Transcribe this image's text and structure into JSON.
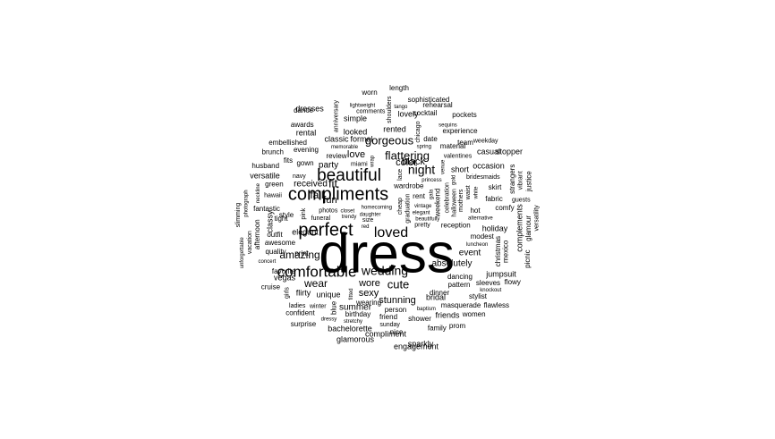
{
  "words": [
    "dress",
    "perfect",
    "beautiful",
    "compliments",
    "comfortable",
    "wedding",
    "loved",
    "night",
    "flattering",
    "color",
    "gorgeous",
    "fit",
    "fall",
    "fun",
    "amazing",
    "party",
    "wear",
    "cute",
    "wore",
    "sexy",
    "love",
    "received",
    "elegant",
    "classy",
    "stunning",
    "absolutely",
    "event",
    "occasion",
    "summer",
    "compliment",
    "bridal",
    "friends",
    "holiday",
    "short",
    "black",
    "simple",
    "lovely",
    "rental",
    "dresses",
    "looked",
    "rented",
    "dance",
    "classic",
    "formal",
    "sparkly",
    "engagement",
    "bachelorette",
    "glamorous",
    "unique",
    "flirty",
    "vegas",
    "gown",
    "jumpsuit",
    "casual",
    "stopper",
    "complements",
    "versatile",
    "fantastic",
    "awesome",
    "outfit",
    "quality",
    "print",
    "favorite",
    "evening",
    "style",
    "tight",
    "review",
    "fits",
    "worn",
    "sophisticated",
    "rehearsal",
    "cocktail",
    "length",
    "experience",
    "skirt",
    "fabric",
    "hot",
    "comfy",
    "team",
    "date",
    "material",
    "pockets",
    "dancing",
    "dinner",
    "stylist",
    "prom",
    "person",
    "friend",
    "shower",
    "birthday",
    "wearing",
    "nice",
    "pattern",
    "size",
    "daughter",
    "homecoming",
    "cheap",
    "graduation",
    "elegant",
    "pretty",
    "beautifully",
    "vintage",
    "trendy",
    "weekend",
    "wardrobe",
    "celebration",
    "rent",
    "closet",
    "reception",
    "photos",
    "halloween",
    "mothers",
    "bridesmaids",
    "christmas",
    "funeral",
    "valentines",
    "alternative",
    "memorable",
    "masquerade",
    "modest",
    "gala",
    "luncheon",
    "afternoon",
    "baptism",
    "anniversary",
    "hawaii",
    "chicago",
    "strangers",
    "princess",
    "miami",
    "mexico",
    "wrap",
    "sleeves",
    "shoulders",
    "waist",
    "neckline",
    "fitted",
    "lace",
    "sequins",
    "red",
    "blue",
    "green",
    "pink",
    "white",
    "gold",
    "navy",
    "embellished",
    "spring",
    "sunday",
    "winter",
    "comments",
    "husband",
    "family",
    "girls",
    "ladies",
    "women",
    "guests",
    "dressy",
    "confident",
    "glamour",
    "vibrant",
    "cruise",
    "vacation",
    "concert",
    "brunch",
    "picnic",
    "weekday",
    "photograph",
    "tango",
    "venue",
    "awards",
    "justice",
    "knockout",
    "lightweight",
    "stretchy",
    "versatility",
    "slimming",
    "flowy",
    "flawless",
    "unforgettable",
    "surprise"
  ]
}
